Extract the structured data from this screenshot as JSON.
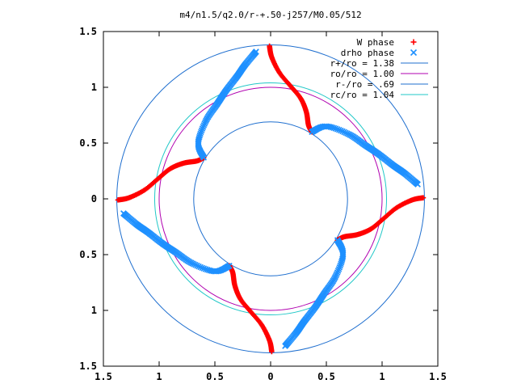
{
  "chart_data": {
    "type": "scatter",
    "title": "m4/n1.5/q2.0/r-+.50-j257/M0.05/512",
    "xlabel": "",
    "ylabel": "",
    "xlim": [
      -1.5,
      1.5
    ],
    "ylim": [
      -1.5,
      1.5
    ],
    "x_ticks": [
      -1.5,
      -1,
      -0.5,
      0,
      0.5,
      1,
      1.5
    ],
    "y_ticks": [
      -1.5,
      -1,
      -0.5,
      0,
      0.5,
      1,
      1.5
    ],
    "x_tick_labels": [
      "1.5",
      "1",
      "0.5",
      "0",
      "0.5",
      "1",
      "1.5"
    ],
    "y_tick_labels": [
      "1.5",
      "1",
      "0.5",
      "0",
      "0.5",
      "1",
      "1.5"
    ],
    "grid": false,
    "legend_position": "top-right",
    "series": [
      {
        "name": "W phase",
        "marker": "+",
        "color": "#ff0000",
        "curves": [
          [
            [
              -0.01,
              1.37
            ],
            [
              0.01,
              1.27
            ],
            [
              0.08,
              1.13
            ],
            [
              0.18,
              1.01
            ],
            [
              0.27,
              0.9
            ],
            [
              0.32,
              0.78
            ],
            [
              0.34,
              0.66
            ],
            [
              0.37,
              0.6
            ]
          ],
          [
            [
              1.37,
              0.01
            ],
            [
              1.27,
              -0.01
            ],
            [
              1.13,
              -0.08
            ],
            [
              1.01,
              -0.18
            ],
            [
              0.9,
              -0.27
            ],
            [
              0.78,
              -0.32
            ],
            [
              0.66,
              -0.34
            ],
            [
              0.6,
              -0.37
            ]
          ],
          [
            [
              0.01,
              -1.37
            ],
            [
              -0.01,
              -1.27
            ],
            [
              -0.08,
              -1.13
            ],
            [
              -0.18,
              -1.01
            ],
            [
              -0.27,
              -0.9
            ],
            [
              -0.32,
              -0.78
            ],
            [
              -0.34,
              -0.66
            ],
            [
              -0.37,
              -0.6
            ]
          ],
          [
            [
              -1.37,
              -0.01
            ],
            [
              -1.27,
              0.01
            ],
            [
              -1.13,
              0.08
            ],
            [
              -1.01,
              0.18
            ],
            [
              -0.9,
              0.27
            ],
            [
              -0.78,
              0.32
            ],
            [
              -0.66,
              0.34
            ],
            [
              -0.6,
              0.37
            ]
          ]
        ]
      },
      {
        "name": "drho phase",
        "marker": "x",
        "color": "#1e90ff",
        "curves": [
          [
            [
              0.37,
              0.6
            ],
            [
              0.5,
              0.65
            ],
            [
              0.7,
              0.58
            ],
            [
              0.85,
              0.48
            ],
            [
              0.97,
              0.4
            ],
            [
              1.1,
              0.3
            ],
            [
              1.2,
              0.23
            ],
            [
              1.32,
              0.13
            ]
          ],
          [
            [
              0.6,
              -0.37
            ],
            [
              0.65,
              -0.5
            ],
            [
              0.58,
              -0.7
            ],
            [
              0.48,
              -0.85
            ],
            [
              0.4,
              -0.97
            ],
            [
              0.3,
              -1.1
            ],
            [
              0.23,
              -1.2
            ],
            [
              0.13,
              -1.32
            ]
          ],
          [
            [
              -0.37,
              -0.6
            ],
            [
              -0.5,
              -0.65
            ],
            [
              -0.7,
              -0.58
            ],
            [
              -0.85,
              -0.48
            ],
            [
              -0.97,
              -0.4
            ],
            [
              -1.1,
              -0.3
            ],
            [
              -1.2,
              -0.23
            ],
            [
              -1.32,
              -0.13
            ]
          ],
          [
            [
              -0.6,
              0.37
            ],
            [
              -0.65,
              0.5
            ],
            [
              -0.58,
              0.7
            ],
            [
              -0.48,
              0.85
            ],
            [
              -0.4,
              0.97
            ],
            [
              -0.3,
              1.1
            ],
            [
              -0.23,
              1.2
            ],
            [
              -0.13,
              1.32
            ]
          ]
        ]
      }
    ],
    "circles": [
      {
        "name": "r+/ro = 1.38",
        "radius": 1.38,
        "color": "#1f6fcf"
      },
      {
        "name": "ro/ro = 1.00",
        "radius": 1.0,
        "color": "#b000b0"
      },
      {
        "name": "r-/ro = .69",
        "radius": 0.69,
        "color": "#1f6fcf"
      },
      {
        "name": "rc/ro = 1.04",
        "radius": 1.04,
        "color": "#22c8c8"
      }
    ]
  }
}
